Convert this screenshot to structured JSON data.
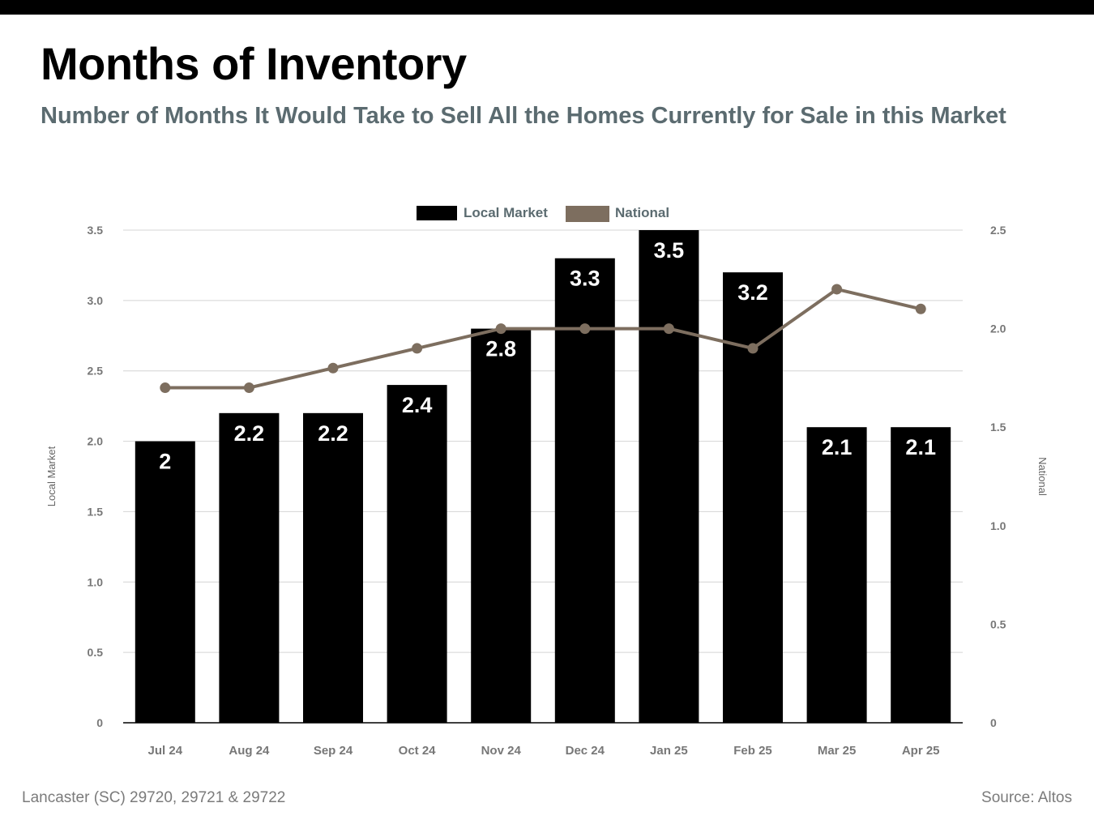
{
  "page": {
    "title": "Months of Inventory",
    "subtitle": "Number of Months It Would Take to Sell All the Homes Currently for Sale in this Market",
    "footer_left": "Lancaster (SC) 29720, 29721 & 29722",
    "footer_right": "Source: Altos"
  },
  "chart_data": {
    "type": "bar",
    "categories": [
      "Jul 24",
      "Aug 24",
      "Sep 24",
      "Oct 24",
      "Nov 24",
      "Dec 24",
      "Jan 25",
      "Feb 25",
      "Mar 25",
      "Apr 25"
    ],
    "series": [
      {
        "name": "Local Market",
        "type": "bar",
        "axis": "left",
        "color": "#000000",
        "values": [
          2.0,
          2.2,
          2.2,
          2.4,
          2.8,
          3.3,
          3.5,
          3.2,
          2.1,
          2.1
        ],
        "data_labels": [
          "2",
          "2.2",
          "2.2",
          "2.4",
          "2.8",
          "3.3",
          "3.5",
          "3.2",
          "2.1",
          "2.1"
        ]
      },
      {
        "name": "National",
        "type": "line",
        "axis": "right",
        "color": "#7d6e5f",
        "values": [
          1.7,
          1.7,
          1.8,
          1.9,
          2.0,
          2.0,
          2.0,
          1.9,
          2.2,
          2.1
        ]
      }
    ],
    "y_left": {
      "label": "Local Market",
      "range": [
        0,
        3.5
      ],
      "ticks": [
        0,
        0.5,
        1.0,
        1.5,
        2.0,
        2.5,
        3.0,
        3.5
      ],
      "tick_labels": [
        "0",
        "0.5",
        "1.0",
        "1.5",
        "2.0",
        "2.5",
        "3.0",
        "3.5"
      ]
    },
    "y_right": {
      "label": "National",
      "range": [
        0,
        2.5
      ],
      "ticks": [
        0,
        0.5,
        1.0,
        1.5,
        2.0,
        2.5
      ],
      "tick_labels": [
        "0",
        "0.5",
        "1.0",
        "1.5",
        "2.0",
        "2.5"
      ]
    },
    "grid": true,
    "legend_position": "top-center"
  }
}
